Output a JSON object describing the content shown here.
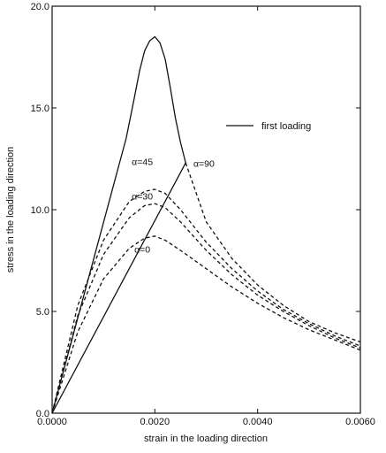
{
  "chart_data": {
    "type": "line",
    "title": "",
    "xlabel": "strain in the loading direction",
    "ylabel": "stress in the loading direction",
    "xlim": [
      0,
      0.006
    ],
    "ylim": [
      0,
      20
    ],
    "grid": false,
    "x_ticks": [
      0,
      0.002,
      0.004,
      0.006
    ],
    "x_tick_labels": [
      "0.0000",
      "0.0020",
      "0.0040",
      "0.0060"
    ],
    "y_ticks": [
      0,
      5,
      10,
      15,
      20
    ],
    "y_tick_labels": [
      "0.0",
      "5.0",
      "10.0",
      "15.0",
      "20.0"
    ],
    "legend": {
      "position": "top-right",
      "entries": [
        {
          "label": "first loading",
          "style": "solid"
        }
      ]
    },
    "series": [
      {
        "style": "solid",
        "color": "#111111",
        "x": [
          0,
          0.00144,
          0.0016,
          0.0017,
          0.0018,
          0.0019,
          0.002,
          0.0021,
          0.0022,
          0.0023,
          0.0024,
          0.0025,
          0.0026
        ],
        "y": [
          0,
          13.5,
          15.5,
          16.8,
          17.8,
          18.3,
          18.5,
          18.2,
          17.4,
          16.0,
          14.5,
          13.3,
          12.3
        ]
      },
      {
        "style": "solid",
        "color": "#111111",
        "x": [
          0,
          0.0026
        ],
        "y": [
          0,
          12.3
        ]
      },
      {
        "style": "dashed",
        "color": "#111111",
        "x": [
          0.0026,
          0.003,
          0.0035,
          0.004,
          0.0045,
          0.005,
          0.0055,
          0.006
        ],
        "y": [
          12.3,
          9.4,
          7.6,
          6.3,
          5.3,
          4.5,
          3.95,
          3.5
        ]
      },
      {
        "style": "dashed",
        "color": "#111111",
        "x": [
          0,
          0.0005,
          0.001,
          0.0015,
          0.0018,
          0.002,
          0.0022,
          0.0025,
          0.003,
          0.0035,
          0.004,
          0.0045,
          0.005,
          0.0055,
          0.006
        ],
        "y": [
          0,
          5.3,
          8.5,
          10.4,
          10.9,
          11.0,
          10.8,
          10.0,
          8.4,
          7.1,
          6.0,
          5.1,
          4.4,
          3.8,
          3.3
        ]
      },
      {
        "style": "dashed",
        "color": "#111111",
        "x": [
          0,
          0.0005,
          0.001,
          0.0015,
          0.0018,
          0.002,
          0.0022,
          0.0025,
          0.003,
          0.0035,
          0.004,
          0.0045,
          0.005,
          0.0055,
          0.006
        ],
        "y": [
          0,
          4.8,
          7.8,
          9.6,
          10.2,
          10.3,
          10.1,
          9.4,
          8.0,
          6.8,
          5.8,
          5.0,
          4.3,
          3.7,
          3.2
        ]
      },
      {
        "style": "dashed",
        "color": "#111111",
        "x": [
          0,
          0.0005,
          0.001,
          0.0015,
          0.0018,
          0.002,
          0.0022,
          0.0025,
          0.003,
          0.0035,
          0.004,
          0.0045,
          0.005,
          0.0055,
          0.006
        ],
        "y": [
          0,
          4.0,
          6.6,
          8.1,
          8.6,
          8.7,
          8.5,
          8.0,
          7.1,
          6.2,
          5.4,
          4.7,
          4.1,
          3.6,
          3.1
        ]
      }
    ],
    "annotations": [
      {
        "text": "α=45",
        "x": 0.00155,
        "y": 12.2
      },
      {
        "text": "α=90",
        "x": 0.00275,
        "y": 12.1
      },
      {
        "text": "α=30",
        "x": 0.00155,
        "y": 10.5
      },
      {
        "text": "α=0",
        "x": 0.0016,
        "y": 7.9
      }
    ]
  }
}
